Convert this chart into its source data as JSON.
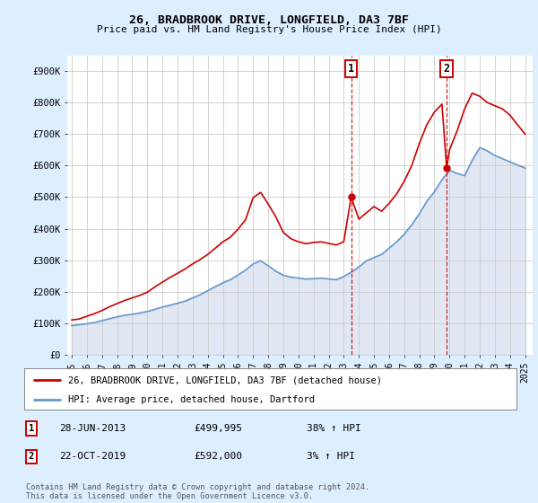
{
  "title1": "26, BRADBROOK DRIVE, LONGFIELD, DA3 7BF",
  "title2": "Price paid vs. HM Land Registry's House Price Index (HPI)",
  "ylabel_ticks": [
    "£0",
    "£100K",
    "£200K",
    "£300K",
    "£400K",
    "£500K",
    "£600K",
    "£700K",
    "£800K",
    "£900K"
  ],
  "ytick_vals": [
    0,
    100000,
    200000,
    300000,
    400000,
    500000,
    600000,
    700000,
    800000,
    900000
  ],
  "ylim": [
    0,
    950000
  ],
  "xlim_start": 1994.7,
  "xlim_end": 2025.5,
  "xtick_years": [
    1995,
    1996,
    1997,
    1998,
    1999,
    2000,
    2001,
    2002,
    2003,
    2004,
    2005,
    2006,
    2007,
    2008,
    2009,
    2010,
    2011,
    2012,
    2013,
    2014,
    2015,
    2016,
    2017,
    2018,
    2019,
    2020,
    2021,
    2022,
    2023,
    2024,
    2025
  ],
  "red_line_color": "#cc0000",
  "blue_line_color": "#6699cc",
  "blue_fill_color": "#aabbdd",
  "grid_color": "#cccccc",
  "background_color": "#ddeeff",
  "plot_bg_color": "#ffffff",
  "sale1_x": 2013.49,
  "sale1_y": 499995,
  "sale1_label": "1",
  "sale2_x": 2019.81,
  "sale2_y": 592000,
  "sale2_label": "2",
  "legend_label_red": "26, BRADBROOK DRIVE, LONGFIELD, DA3 7BF (detached house)",
  "legend_label_blue": "HPI: Average price, detached house, Dartford",
  "annotation1_date": "28-JUN-2013",
  "annotation1_price": "£499,995",
  "annotation1_hpi": "38% ↑ HPI",
  "annotation2_date": "22-OCT-2019",
  "annotation2_price": "£592,000",
  "annotation2_hpi": "3% ↑ HPI",
  "footer": "Contains HM Land Registry data © Crown copyright and database right 2024.\nThis data is licensed under the Open Government Licence v3.0.",
  "red_x": [
    1995.0,
    1995.5,
    1996.0,
    1996.5,
    1997.0,
    1997.5,
    1998.0,
    1998.5,
    1999.0,
    1999.5,
    2000.0,
    2000.5,
    2001.0,
    2001.5,
    2002.0,
    2002.5,
    2003.0,
    2003.5,
    2004.0,
    2004.5,
    2005.0,
    2005.5,
    2006.0,
    2006.5,
    2007.0,
    2007.5,
    2008.0,
    2008.5,
    2009.0,
    2009.5,
    2010.0,
    2010.5,
    2011.0,
    2011.5,
    2012.0,
    2012.5,
    2013.0,
    2013.49,
    2014.0,
    2014.5,
    2015.0,
    2015.5,
    2016.0,
    2016.5,
    2017.0,
    2017.5,
    2018.0,
    2018.5,
    2019.0,
    2019.5,
    2019.81,
    2020.0,
    2020.5,
    2021.0,
    2021.5,
    2022.0,
    2022.5,
    2023.0,
    2023.5,
    2024.0,
    2024.5,
    2025.0
  ],
  "red_y": [
    110000,
    113000,
    122000,
    130000,
    140000,
    152000,
    162000,
    172000,
    180000,
    188000,
    198000,
    215000,
    230000,
    245000,
    258000,
    272000,
    288000,
    302000,
    318000,
    338000,
    358000,
    373000,
    398000,
    428000,
    498000,
    515000,
    478000,
    438000,
    388000,
    368000,
    358000,
    352000,
    356000,
    358000,
    353000,
    348000,
    358000,
    499995,
    430000,
    450000,
    470000,
    455000,
    480000,
    510000,
    550000,
    600000,
    670000,
    730000,
    770000,
    795000,
    592000,
    650000,
    710000,
    780000,
    830000,
    820000,
    800000,
    790000,
    780000,
    760000,
    730000,
    700000
  ],
  "blue_x": [
    1995.0,
    1995.5,
    1996.0,
    1996.5,
    1997.0,
    1997.5,
    1998.0,
    1998.5,
    1999.0,
    1999.5,
    2000.0,
    2000.5,
    2001.0,
    2001.5,
    2002.0,
    2002.5,
    2003.0,
    2003.5,
    2004.0,
    2004.5,
    2005.0,
    2005.5,
    2006.0,
    2006.5,
    2007.0,
    2007.5,
    2008.0,
    2008.5,
    2009.0,
    2009.5,
    2010.0,
    2010.5,
    2011.0,
    2011.5,
    2012.0,
    2012.5,
    2013.0,
    2013.5,
    2014.0,
    2014.5,
    2015.0,
    2015.5,
    2016.0,
    2016.5,
    2017.0,
    2017.5,
    2018.0,
    2018.5,
    2019.0,
    2019.5,
    2020.0,
    2020.5,
    2021.0,
    2021.5,
    2022.0,
    2022.5,
    2023.0,
    2023.5,
    2024.0,
    2024.5,
    2025.0
  ],
  "blue_y": [
    92000,
    95000,
    98000,
    102000,
    108000,
    114000,
    120000,
    125000,
    128000,
    132000,
    137000,
    144000,
    151000,
    157000,
    163000,
    170000,
    180000,
    190000,
    203000,
    216000,
    228000,
    238000,
    253000,
    268000,
    288000,
    298000,
    282000,
    265000,
    252000,
    246000,
    243000,
    240000,
    241000,
    243000,
    240000,
    238000,
    248000,
    262000,
    278000,
    298000,
    308000,
    318000,
    338000,
    358000,
    382000,
    412000,
    447000,
    487000,
    517000,
    555000,
    585000,
    575000,
    568000,
    617000,
    657000,
    647000,
    632000,
    622000,
    612000,
    602000,
    592000
  ]
}
